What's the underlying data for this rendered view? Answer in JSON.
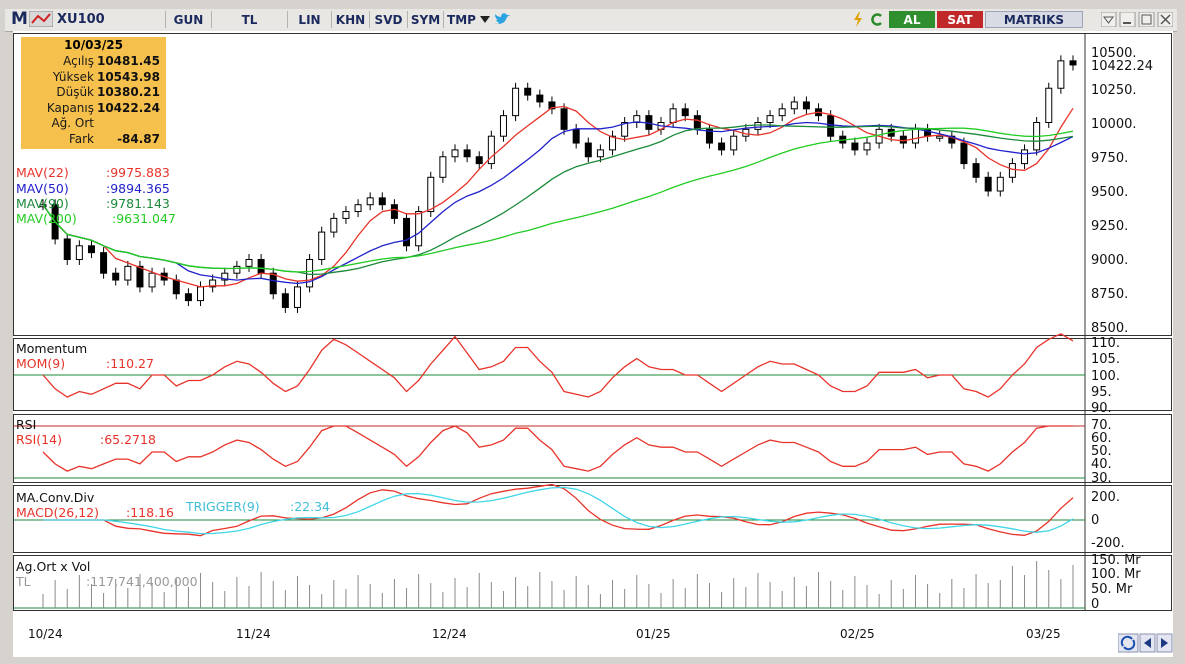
{
  "toolbar": {
    "logo": "M",
    "symbol": "XU100",
    "buttons": [
      "GUN",
      "TL",
      "LIN",
      "KHN",
      "SVD",
      "SYM",
      "TMP"
    ],
    "buy_label": "AL",
    "sell_label": "SAT",
    "brand": "MATRIKS"
  },
  "info": {
    "date": "10/03/25",
    "rows": [
      {
        "label": "Açılış",
        "value": "10481.45"
      },
      {
        "label": "Yüksek",
        "value": "10543.98"
      },
      {
        "label": "Düşük",
        "value": "10380.21"
      },
      {
        "label": "Kapanış",
        "value": "10422.24"
      },
      {
        "label": "Ağ. Ort",
        "value": ""
      },
      {
        "label": "Fark",
        "value": "-84.87"
      }
    ]
  },
  "price_panel": {
    "last_price_label": "10422.24",
    "y_ticks": [
      "10500.",
      "10250.",
      "10000.",
      "9750.",
      "9500.",
      "9250.",
      "9000.",
      "8750.",
      "8500."
    ],
    "moving_averages": [
      {
        "label": "MAV(22)",
        "value": ":9975.883",
        "color": "#e8332a"
      },
      {
        "label": "MAV(50)",
        "value": ":9894.365",
        "color": "#2222cc"
      },
      {
        "label": "MAV(90)",
        "value": ":9781.143",
        "color": "#1b8a3a"
      },
      {
        "label": "MAV(200)",
        "value": ":9631.047",
        "color": "#22cc22"
      }
    ]
  },
  "momentum_panel": {
    "title": "Momentum",
    "label": "MOM(9)",
    "value": ":110.27",
    "y_ticks": [
      "110.",
      "105.",
      "100.",
      "95.",
      "90."
    ]
  },
  "rsi_panel": {
    "title": "RSI",
    "label": "RSI(14)",
    "value": ":65.2718",
    "y_ticks": [
      "70.",
      "60.",
      "50.",
      "40.",
      "30."
    ]
  },
  "macd_panel": {
    "title": "MA.Conv.Div",
    "label": "MACD(26,12)",
    "value": ":118.16",
    "trigger_label": "TRIGGER(9)",
    "trigger_value": ":22.34",
    "y_ticks": [
      "200.",
      "0",
      "-200."
    ]
  },
  "volume_panel": {
    "title": "Ag.Ort x Vol",
    "unit": "TL",
    "value": ":117,741,400,000",
    "y_ticks": [
      "150. Mr",
      "100. Mr",
      "50. Mr",
      "0"
    ]
  },
  "x_axis": [
    "10/24",
    "11/24",
    "12/24",
    "01/25",
    "02/25",
    "03/25"
  ],
  "colors": {
    "red": "#e8332a",
    "blue": "#2222cc",
    "darkgreen": "#1b8a3a",
    "green": "#22cc22",
    "cyan": "#3fd6e8",
    "info_bg": "#f5c04c",
    "buy": "#2f8f2f",
    "sell": "#c0282a"
  }
}
